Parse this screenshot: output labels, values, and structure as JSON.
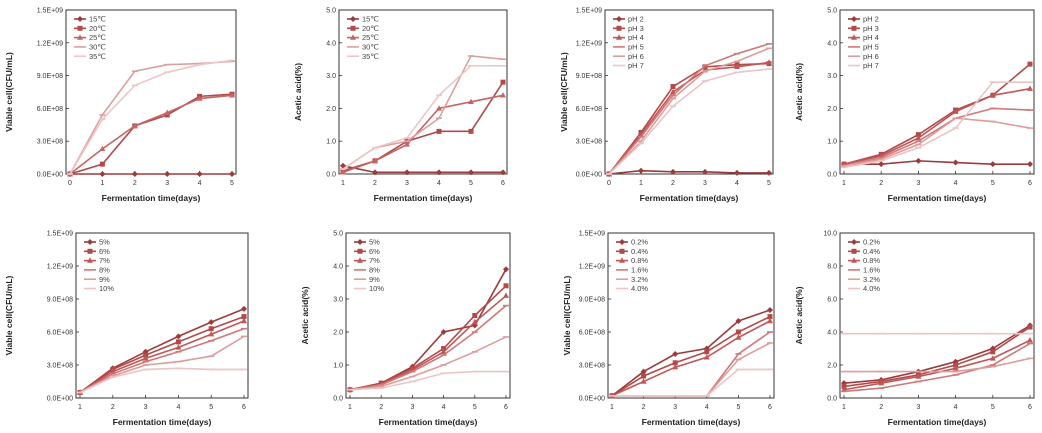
{
  "chart_data": [
    {
      "type": "line",
      "xlabel": "Fermentation time(days)",
      "ylabel": "Viable cell(CFU/mL)",
      "x": [
        0,
        1,
        2,
        3,
        4,
        5
      ],
      "xticks": [
        "0",
        "1",
        "2",
        "3",
        "4",
        "5"
      ],
      "ylim": [
        0,
        1500000000
      ],
      "yticks": [
        "0.0E+00",
        "3.0E+08",
        "6.0E+08",
        "9.0E+08",
        "1.2E+09",
        "1.5E+09"
      ],
      "legend_placement": "top-left",
      "series": [
        {
          "name": "15℃",
          "color": "#9b3b3b",
          "values": [
            0,
            0,
            0,
            0,
            0,
            0
          ]
        },
        {
          "name": "20℃",
          "color": "#b24a4a",
          "values": [
            0,
            90000000,
            440000000,
            540000000,
            710000000,
            730000000
          ]
        },
        {
          "name": "25℃",
          "color": "#c76464",
          "values": [
            0,
            230000000,
            440000000,
            560000000,
            690000000,
            720000000
          ]
        },
        {
          "name": "30℃",
          "color": "#dda0a0",
          "values": [
            0,
            540000000,
            940000000,
            1000000000,
            1010000000,
            1030000000
          ]
        },
        {
          "name": "35℃",
          "color": "#ecc6c6",
          "values": [
            0,
            500000000,
            810000000,
            930000000,
            1000000000,
            1040000000
          ]
        }
      ]
    },
    {
      "type": "line",
      "xlabel": "Fermentation time(days)",
      "ylabel": "Acetic acid(%)",
      "x": [
        1,
        2,
        3,
        4,
        5,
        6
      ],
      "xticks": [
        "1",
        "2",
        "3",
        "4",
        "5",
        "6"
      ],
      "ylim": [
        0,
        5
      ],
      "yticks": [
        "0.0",
        "1.0",
        "2.0",
        "3.0",
        "4.0",
        "5.0"
      ],
      "legend_placement": "top-left",
      "series": [
        {
          "name": "15℃",
          "color": "#9b3b3b",
          "values": [
            0.25,
            0.05,
            0.05,
            0.05,
            0.05,
            0.05
          ]
        },
        {
          "name": "20℃",
          "color": "#b24a4a",
          "values": [
            0.1,
            0.4,
            1.0,
            1.3,
            1.3,
            2.8
          ]
        },
        {
          "name": "25℃",
          "color": "#c76464",
          "values": [
            0.05,
            0.4,
            0.9,
            2.0,
            2.2,
            2.4
          ]
        },
        {
          "name": "30℃",
          "color": "#dda0a0",
          "values": [
            0.15,
            0.8,
            1.0,
            1.7,
            3.6,
            3.5
          ]
        },
        {
          "name": "35℃",
          "color": "#ecc6c6",
          "values": [
            0.15,
            0.8,
            1.1,
            2.4,
            3.3,
            3.3
          ]
        }
      ]
    },
    {
      "type": "line",
      "xlabel": "Fermentation time(days)",
      "ylabel": "Viable cell(CFU/mL)",
      "x": [
        0,
        1,
        2,
        3,
        4,
        5
      ],
      "xticks": [
        "0",
        "1",
        "2",
        "3",
        "4",
        "5"
      ],
      "ylim": [
        0,
        1500000000
      ],
      "yticks": [
        "0.0E+00",
        "3.0E+08",
        "6.0E+08",
        "9.0E+08",
        "1.2E+09",
        "1.5E+09"
      ],
      "legend_placement": "top-left",
      "series": [
        {
          "name": "pH 2",
          "color": "#9b3b3b",
          "values": [
            0,
            30000000,
            20000000,
            20000000,
            10000000,
            10000000
          ]
        },
        {
          "name": "pH 3",
          "color": "#b24a4a",
          "values": [
            0,
            380000000,
            800000000,
            980000000,
            1000000000,
            1010000000
          ]
        },
        {
          "name": "pH 4",
          "color": "#c25656",
          "values": [
            0,
            360000000,
            750000000,
            950000000,
            980000000,
            1020000000
          ]
        },
        {
          "name": "pH 5",
          "color": "#d07878",
          "values": [
            0,
            340000000,
            720000000,
            990000000,
            1100000000,
            1190000000
          ]
        },
        {
          "name": "pH 6",
          "color": "#de9c9c",
          "values": [
            0,
            300000000,
            690000000,
            940000000,
            1030000000,
            1150000000
          ]
        },
        {
          "name": "pH 7",
          "color": "#ecc4c4",
          "values": [
            0,
            280000000,
            620000000,
            850000000,
            930000000,
            960000000
          ]
        }
      ]
    },
    {
      "type": "line",
      "xlabel": "Fermentation time(days)",
      "ylabel": "Acetic acid(%)",
      "x": [
        1,
        2,
        3,
        4,
        5,
        6
      ],
      "xticks": [
        "1",
        "2",
        "3",
        "4",
        "5",
        "6"
      ],
      "ylim": [
        0,
        5
      ],
      "yticks": [
        "0.0",
        "1.0",
        "2.0",
        "3.0",
        "4.0",
        "5.0"
      ],
      "legend_placement": "top-left",
      "series": [
        {
          "name": "pH 2",
          "color": "#9b3b3b",
          "values": [
            0.3,
            0.3,
            0.4,
            0.35,
            0.3,
            0.3
          ]
        },
        {
          "name": "pH 3",
          "color": "#b24a4a",
          "values": [
            0.3,
            0.6,
            1.2,
            1.95,
            2.4,
            3.35
          ]
        },
        {
          "name": "pH 4",
          "color": "#c25656",
          "values": [
            0.3,
            0.55,
            1.1,
            1.9,
            2.4,
            2.6
          ]
        },
        {
          "name": "pH 5",
          "color": "#d07878",
          "values": [
            0.25,
            0.5,
            1.0,
            1.7,
            2.0,
            1.95
          ]
        },
        {
          "name": "pH 6",
          "color": "#de9c9c",
          "values": [
            0.25,
            0.45,
            0.9,
            1.7,
            1.6,
            1.4
          ]
        },
        {
          "name": "pH 7",
          "color": "#ecc4c4",
          "values": [
            0.2,
            0.4,
            0.8,
            1.4,
            2.8,
            2.8
          ]
        }
      ]
    },
    {
      "type": "line",
      "xlabel": "Fermentation time(days)",
      "ylabel": "Viable cell(CFU/mL)",
      "x": [
        1,
        2,
        3,
        4,
        5,
        6
      ],
      "xticks": [
        "1",
        "2",
        "3",
        "4",
        "5",
        "6"
      ],
      "ylim": [
        0,
        1500000000
      ],
      "yticks": [
        "0.0E+00",
        "3.0E+08",
        "6.0E+08",
        "9.0E+08",
        "1.2E+09",
        "1.5E+09"
      ],
      "legend_placement": "top-left",
      "series": [
        {
          "name": "5%",
          "color": "#9b3b3b",
          "values": [
            50000000,
            270000000,
            420000000,
            560000000,
            690000000,
            810000000
          ]
        },
        {
          "name": "6%",
          "color": "#b24a4a",
          "values": [
            50000000,
            260000000,
            390000000,
            510000000,
            630000000,
            740000000
          ]
        },
        {
          "name": "7%",
          "color": "#c25656",
          "values": [
            50000000,
            240000000,
            360000000,
            460000000,
            580000000,
            700000000
          ]
        },
        {
          "name": "8%",
          "color": "#d07878",
          "values": [
            50000000,
            220000000,
            330000000,
            420000000,
            520000000,
            630000000
          ]
        },
        {
          "name": "9%",
          "color": "#de9c9c",
          "values": [
            50000000,
            200000000,
            300000000,
            330000000,
            380000000,
            560000000
          ]
        },
        {
          "name": "10%",
          "color": "#ecc4c4",
          "values": [
            50000000,
            190000000,
            260000000,
            270000000,
            260000000,
            260000000
          ]
        }
      ]
    },
    {
      "type": "line",
      "xlabel": "Fermentation time(days)",
      "ylabel": "Acetic acid(%)",
      "x": [
        1,
        2,
        3,
        4,
        5,
        6
      ],
      "xticks": [
        "1",
        "2",
        "3",
        "4",
        "5",
        "6"
      ],
      "ylim": [
        0,
        5
      ],
      "yticks": [
        "0.0",
        "1.0",
        "2.0",
        "3.0",
        "4.0",
        "5.0"
      ],
      "legend_placement": "top-left",
      "series": [
        {
          "name": "5%",
          "color": "#9b3b3b",
          "values": [
            0.25,
            0.45,
            0.95,
            2.0,
            2.2,
            3.9
          ]
        },
        {
          "name": "6%",
          "color": "#b24a4a",
          "values": [
            0.25,
            0.45,
            0.9,
            1.5,
            2.5,
            3.4
          ]
        },
        {
          "name": "7%",
          "color": "#c25656",
          "values": [
            0.25,
            0.4,
            0.85,
            1.4,
            2.3,
            3.1
          ]
        },
        {
          "name": "8%",
          "color": "#d07878",
          "values": [
            0.25,
            0.4,
            0.8,
            1.3,
            2.0,
            2.8
          ]
        },
        {
          "name": "9%",
          "color": "#de9c9c",
          "values": [
            0.25,
            0.35,
            0.65,
            1.0,
            1.4,
            1.85
          ]
        },
        {
          "name": "10%",
          "color": "#ecc4c4",
          "values": [
            0.25,
            0.3,
            0.5,
            0.75,
            0.8,
            0.8
          ]
        }
      ]
    },
    {
      "type": "line",
      "xlabel": "Fermentation time(days)",
      "ylabel": "Viable cell(CFU/mL)",
      "x": [
        1,
        2,
        3,
        4,
        5,
        6
      ],
      "xticks": [
        "1",
        "2",
        "3",
        "4",
        "5",
        "6"
      ],
      "ylim": [
        0,
        1500000000
      ],
      "yticks": [
        "0.0E+00",
        "3.0E+08",
        "6.0E+08",
        "9.0E+08",
        "1.2E+09",
        "1.5E+09"
      ],
      "legend_placement": "top-left",
      "series": [
        {
          "name": "0.2%",
          "color": "#9b3b3b",
          "values": [
            20000000,
            240000000,
            400000000,
            450000000,
            700000000,
            800000000
          ]
        },
        {
          "name": "0.4%",
          "color": "#b24a4a",
          "values": [
            20000000,
            200000000,
            320000000,
            420000000,
            600000000,
            740000000
          ]
        },
        {
          "name": "0.8%",
          "color": "#c25656",
          "values": [
            20000000,
            150000000,
            280000000,
            370000000,
            550000000,
            700000000
          ]
        },
        {
          "name": "1.6%",
          "color": "#d07878",
          "values": [
            20000000,
            20000000,
            20000000,
            20000000,
            400000000,
            600000000
          ]
        },
        {
          "name": "3.2%",
          "color": "#de9c9c",
          "values": [
            20000000,
            20000000,
            20000000,
            20000000,
            350000000,
            500000000
          ]
        },
        {
          "name": "4.0%",
          "color": "#ecc4c4",
          "values": [
            20000000,
            20000000,
            20000000,
            20000000,
            260000000,
            260000000
          ]
        }
      ]
    },
    {
      "type": "line",
      "xlabel": "Fermentation time(days)",
      "ylabel": "Acetic acid(%)",
      "x": [
        1,
        2,
        3,
        4,
        5,
        6
      ],
      "xticks": [
        "1",
        "2",
        "3",
        "4",
        "5",
        "6"
      ],
      "ylim": [
        0,
        10
      ],
      "yticks": [
        "0.0",
        "2.0",
        "4.0",
        "6.0",
        "8.0",
        "10.0"
      ],
      "legend_placement": "top-left",
      "series": [
        {
          "name": "0.2%",
          "color": "#9b3b3b",
          "values": [
            0.9,
            1.1,
            1.6,
            2.2,
            3.0,
            4.4
          ]
        },
        {
          "name": "0.4%",
          "color": "#b24a4a",
          "values": [
            0.7,
            1.0,
            1.4,
            2.0,
            2.8,
            4.3
          ]
        },
        {
          "name": "0.8%",
          "color": "#c25656",
          "values": [
            0.5,
            0.9,
            1.3,
            1.8,
            2.4,
            3.5
          ]
        },
        {
          "name": "1.6%",
          "color": "#d07878",
          "values": [
            0.4,
            0.6,
            1.0,
            1.4,
            2.0,
            3.3
          ]
        },
        {
          "name": "3.2%",
          "color": "#de9c9c",
          "values": [
            1.6,
            1.6,
            1.6,
            1.6,
            1.9,
            2.4
          ]
        },
        {
          "name": "4.0%",
          "color": "#ecc4c4",
          "values": [
            3.9,
            3.9,
            3.9,
            3.9,
            3.9,
            3.9
          ]
        }
      ]
    }
  ]
}
